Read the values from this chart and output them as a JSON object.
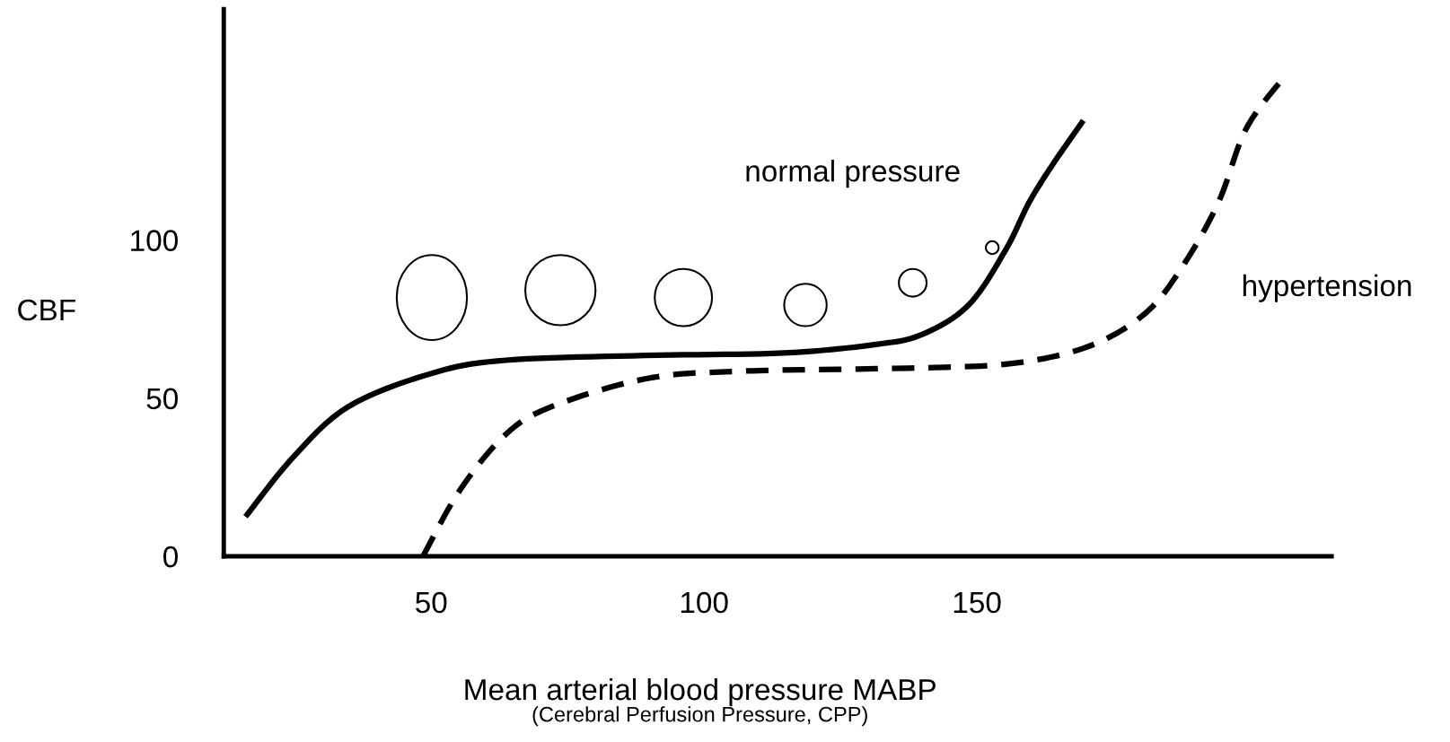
{
  "chart_data": {
    "type": "line",
    "xlabel": "Mean arterial blood pressure MABP",
    "ylabel": "CBF",
    "xlim": [
      12,
      215
    ],
    "ylim": [
      0,
      173
    ],
    "xticks": [
      50,
      100,
      150
    ],
    "yticks": [
      0,
      50,
      100
    ],
    "grid": false,
    "marker": "none",
    "series": [
      {
        "name": "normal pressure",
        "color": "#000000",
        "line_style": "solid",
        "x": [
          16.3,
          24.7,
          34.9,
          50.2,
          63.7,
          89.2,
          114.6,
          131.5,
          140,
          148.5,
          155.3,
          159.5,
          163.7,
          169.2
        ],
        "values": [
          13.2,
          31.3,
          47.4,
          57.9,
          62,
          63.5,
          64.3,
          67,
          70.2,
          79.5,
          97,
          111.7,
          123.4,
          137.1
        ]
      },
      {
        "name": "hypertension",
        "color": "#000000",
        "line_style": "dashed",
        "x": [
          48.5,
          55.3,
          63.7,
          72.2,
          89.2,
          106.1,
          140,
          157,
          170.5,
          180.7,
          187.5,
          194.2,
          199.3,
          206.1
        ],
        "values": [
          0,
          21,
          38.6,
          47.4,
          56.1,
          58.5,
          59.6,
          61.1,
          66.4,
          76.6,
          91.2,
          111.7,
          135.1,
          151.2
        ]
      }
    ],
    "annotations": [
      "(Cerebral Perfusion Pressure, CPP)"
    ]
  }
}
